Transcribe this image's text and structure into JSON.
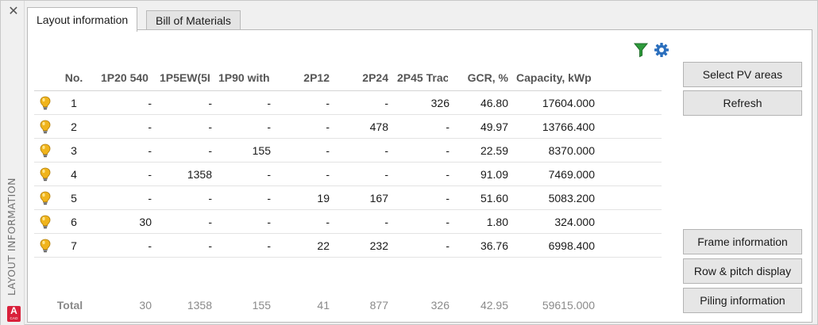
{
  "sidebar": {
    "title": "LAYOUT INFORMATION",
    "logo_letter": "A",
    "logo_sub": "CAD"
  },
  "tabs": [
    {
      "label": "Layout information",
      "active": true
    },
    {
      "label": "Bill of Materials",
      "active": false
    }
  ],
  "toolbar": {
    "icons": [
      "filter-icon",
      "settings-icon"
    ],
    "colors": {
      "filter": "#2e9b3c",
      "settings": "#2b6fbd"
    }
  },
  "table": {
    "headers": [
      "No.",
      "1P20 540",
      "1P5EW(5I",
      "1P90 with",
      "2P12",
      "2P24",
      "2P45 Trac",
      "GCR, %",
      "Capacity, kWp"
    ],
    "rows": [
      [
        "1",
        "-",
        "-",
        "-",
        "-",
        "-",
        "326",
        "46.80",
        "17604.000"
      ],
      [
        "2",
        "-",
        "-",
        "-",
        "-",
        "478",
        "-",
        "49.97",
        "13766.400"
      ],
      [
        "3",
        "-",
        "-",
        "155",
        "-",
        "-",
        "-",
        "22.59",
        "8370.000"
      ],
      [
        "4",
        "-",
        "1358",
        "-",
        "-",
        "-",
        "-",
        "91.09",
        "7469.000"
      ],
      [
        "5",
        "-",
        "-",
        "-",
        "19",
        "167",
        "-",
        "51.60",
        "5083.200"
      ],
      [
        "6",
        "30",
        "-",
        "-",
        "-",
        "-",
        "-",
        "1.80",
        "324.000"
      ],
      [
        "7",
        "-",
        "-",
        "-",
        "22",
        "232",
        "-",
        "36.76",
        "6998.400"
      ]
    ],
    "totals": [
      "Total",
      "30",
      "1358",
      "155",
      "41",
      "877",
      "326",
      "42.95",
      "59615.000"
    ],
    "row_icon": "lightbulb-icon"
  },
  "buttons": {
    "select": "Select PV areas",
    "refresh": "Refresh",
    "frame": "Frame information",
    "row_pitch": "Row & pitch display",
    "piling": "Piling information"
  }
}
